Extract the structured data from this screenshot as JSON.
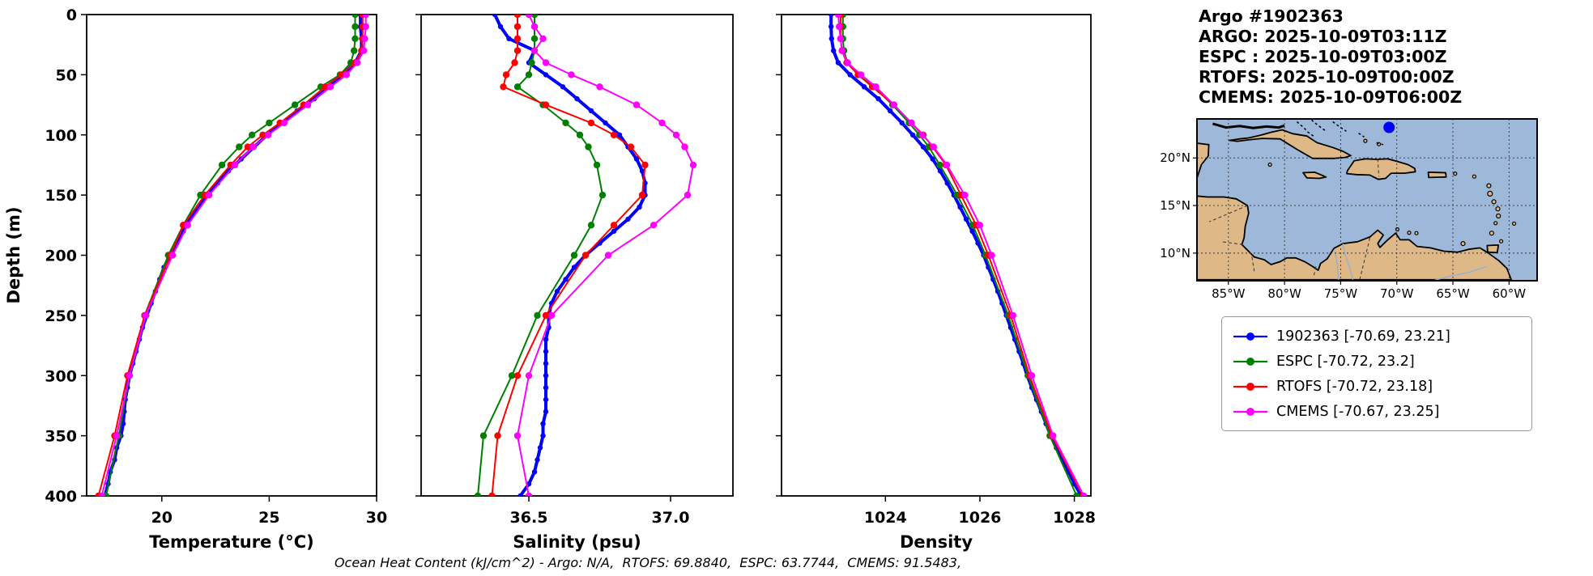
{
  "title_block": {
    "line1": "Argo #1902363",
    "line2": "ARGO: 2025-10-09T03:11Z",
    "line3": "ESPC : 2025-10-09T03:00Z",
    "line4": "RTOFS: 2025-10-09T00:00Z",
    "line5": "CMEMS: 2025-10-09T06:00Z"
  },
  "caption": "Ocean Heat Content (kJ/cm^2) - Argo: N/A,  RTOFS: 69.8840,  ESPC: 63.7744,  CMEMS: 91.5483,",
  "legend": {
    "items": [
      {
        "label": "1902363 [-70.69, 23.21]",
        "color": "#0000ff"
      },
      {
        "label": "ESPC [-70.72, 23.2]",
        "color": "#008000"
      },
      {
        "label": "RTOFS [-70.72, 23.18]",
        "color": "#ff0000"
      },
      {
        "label": "CMEMS [-70.67, 23.25]",
        "color": "#ff00ff"
      }
    ]
  },
  "map": {
    "lat_ticks": [
      "20°N",
      "15°N",
      "10°N"
    ],
    "lat_values": [
      20,
      15,
      10
    ],
    "lon_ticks": [
      "85°W",
      "80°W",
      "75°W",
      "70°W",
      "65°W",
      "60°W"
    ],
    "lon_values": [
      -85,
      -80,
      -75,
      -70,
      -65,
      -60
    ],
    "extent": {
      "lon_min": -87.8,
      "lon_max": -57.5,
      "lat_min": 7.1,
      "lat_max": 24.1
    },
    "float_marker": {
      "lon": -70.69,
      "lat": 23.21,
      "color": "#0000ff"
    },
    "land_color": "#deb887",
    "ocean_color": "#9db8d9"
  },
  "chart_data": [
    {
      "type": "line",
      "xlabel": "Temperature (°C)",
      "ylabel": "Depth (m)",
      "xlim": [
        16.5,
        30
      ],
      "ylim": [
        0,
        400
      ],
      "xticks": [
        20,
        25,
        30
      ],
      "xtick_labels": [
        "20",
        "25",
        "30"
      ],
      "yticks": [
        0,
        50,
        100,
        150,
        200,
        250,
        300,
        350,
        400
      ],
      "series": [
        {
          "name": "1902363",
          "color": "#0000ff",
          "linewidth": 4,
          "markersize": 3.2,
          "depths": [
            0,
            10,
            20,
            30,
            40,
            50,
            60,
            70,
            80,
            90,
            100,
            110,
            120,
            130,
            140,
            150,
            160,
            170,
            180,
            190,
            200,
            210,
            220,
            230,
            240,
            250,
            260,
            270,
            280,
            290,
            300,
            310,
            320,
            330,
            340,
            350,
            360,
            370,
            380,
            390,
            400
          ],
          "values": [
            29.25,
            29.25,
            29.3,
            29.3,
            29.0,
            28.4,
            27.8,
            27.1,
            26.3,
            25.6,
            24.9,
            24.3,
            23.7,
            23.1,
            22.6,
            22.1,
            21.7,
            21.3,
            21.0,
            20.7,
            20.4,
            20.1,
            19.9,
            19.7,
            19.5,
            19.3,
            19.1,
            18.95,
            18.8,
            18.65,
            18.5,
            18.4,
            18.3,
            18.25,
            18.2,
            18.1,
            17.9,
            17.8,
            17.6,
            17.5,
            17.35
          ]
        },
        {
          "name": "ESPC",
          "color": "#008000",
          "linewidth": 2,
          "markersize": 4.2,
          "depths": [
            0,
            10,
            20,
            30,
            40,
            50,
            60,
            75,
            90,
            100,
            110,
            125,
            150,
            175,
            200,
            250,
            300,
            350,
            400
          ],
          "values": [
            29.0,
            29.0,
            29.0,
            28.95,
            28.8,
            28.3,
            27.4,
            26.2,
            25.0,
            24.2,
            23.6,
            22.8,
            21.8,
            21.0,
            20.3,
            19.2,
            18.5,
            18.0,
            17.4
          ]
        },
        {
          "name": "RTOFS",
          "color": "#ff0000",
          "linewidth": 2,
          "markersize": 4.2,
          "depths": [
            0,
            10,
            20,
            30,
            40,
            50,
            60,
            75,
            90,
            100,
            110,
            125,
            150,
            175,
            200,
            250,
            300,
            350,
            400
          ],
          "values": [
            29.35,
            29.35,
            29.35,
            29.3,
            29.0,
            28.35,
            27.6,
            26.6,
            25.5,
            24.7,
            24.0,
            23.2,
            22.0,
            21.0,
            20.4,
            19.2,
            18.4,
            17.8,
            17.05
          ]
        },
        {
          "name": "CMEMS",
          "color": "#ff00ff",
          "linewidth": 2,
          "markersize": 4.2,
          "depths": [
            0,
            10,
            20,
            30,
            40,
            50,
            60,
            75,
            90,
            100,
            110,
            125,
            150,
            175,
            200,
            250,
            300,
            350,
            400
          ],
          "values": [
            29.5,
            29.5,
            29.45,
            29.4,
            29.1,
            28.6,
            27.85,
            26.8,
            25.7,
            24.95,
            24.25,
            23.4,
            22.2,
            21.2,
            20.5,
            19.25,
            18.5,
            17.9,
            17.2
          ]
        }
      ]
    },
    {
      "type": "line",
      "xlabel": "Salinity (psu)",
      "ylabel": "",
      "xlim": [
        36.12,
        37.22
      ],
      "ylim": [
        0,
        400
      ],
      "xticks": [
        36.5,
        37.0
      ],
      "xtick_labels": [
        "36.5",
        "37.0"
      ],
      "yticks": [
        0,
        50,
        100,
        150,
        200,
        250,
        300,
        350,
        400
      ],
      "series": [
        {
          "name": "1902363",
          "color": "#0000ff",
          "linewidth": 4,
          "markersize": 3.2,
          "depths": [
            0,
            10,
            20,
            30,
            40,
            50,
            60,
            70,
            80,
            90,
            100,
            110,
            120,
            130,
            140,
            150,
            160,
            170,
            180,
            190,
            200,
            210,
            220,
            230,
            240,
            250,
            260,
            270,
            280,
            290,
            300,
            310,
            320,
            330,
            340,
            350,
            360,
            370,
            380,
            390,
            400
          ],
          "values": [
            36.38,
            36.4,
            36.43,
            36.52,
            36.5,
            36.56,
            36.62,
            36.67,
            36.72,
            36.77,
            36.82,
            36.85,
            36.88,
            36.9,
            36.91,
            36.91,
            36.89,
            36.85,
            36.8,
            36.75,
            36.7,
            36.66,
            36.63,
            36.6,
            36.58,
            36.57,
            36.57,
            36.56,
            36.56,
            36.56,
            36.56,
            36.56,
            36.56,
            36.56,
            36.55,
            36.55,
            36.54,
            36.53,
            36.52,
            36.5,
            36.47
          ]
        },
        {
          "name": "ESPC",
          "color": "#008000",
          "linewidth": 2,
          "markersize": 4.2,
          "depths": [
            0,
            10,
            20,
            30,
            40,
            50,
            60,
            75,
            90,
            100,
            110,
            125,
            150,
            175,
            200,
            250,
            300,
            350,
            400
          ],
          "values": [
            36.52,
            36.52,
            36.52,
            36.52,
            36.51,
            36.5,
            36.46,
            36.55,
            36.63,
            36.68,
            36.71,
            36.74,
            36.76,
            36.72,
            36.66,
            36.53,
            36.44,
            36.34,
            36.32
          ]
        },
        {
          "name": "RTOFS",
          "color": "#ff0000",
          "linewidth": 2,
          "markersize": 4.2,
          "depths": [
            0,
            10,
            20,
            30,
            40,
            50,
            60,
            75,
            90,
            100,
            110,
            125,
            150,
            175,
            200,
            250,
            300,
            350,
            400
          ],
          "values": [
            36.46,
            36.46,
            36.46,
            36.46,
            36.45,
            36.42,
            36.41,
            36.56,
            36.72,
            36.8,
            36.86,
            36.91,
            36.9,
            36.8,
            36.7,
            36.56,
            36.46,
            36.39,
            36.37
          ]
        },
        {
          "name": "CMEMS",
          "color": "#ff00ff",
          "linewidth": 2,
          "markersize": 4.2,
          "depths": [
            0,
            10,
            20,
            30,
            40,
            50,
            60,
            75,
            90,
            100,
            110,
            125,
            150,
            175,
            200,
            250,
            300,
            350,
            400
          ],
          "values": [
            36.5,
            36.52,
            36.55,
            36.52,
            36.56,
            36.65,
            36.75,
            36.88,
            36.97,
            37.02,
            37.05,
            37.08,
            37.06,
            36.94,
            36.78,
            36.58,
            36.5,
            36.46,
            36.5
          ]
        }
      ]
    },
    {
      "type": "line",
      "xlabel": "Density",
      "ylabel": "",
      "xlim": [
        1021.8,
        1028.35
      ],
      "ylim": [
        0,
        400
      ],
      "xticks": [
        1024,
        1026,
        1028
      ],
      "xtick_labels": [
        "1024",
        "1026",
        "1028"
      ],
      "yticks": [
        0,
        50,
        100,
        150,
        200,
        250,
        300,
        350,
        400
      ],
      "series": [
        {
          "name": "1902363",
          "color": "#0000ff",
          "linewidth": 4,
          "markersize": 3.2,
          "depths": [
            0,
            10,
            20,
            30,
            40,
            50,
            60,
            70,
            80,
            90,
            100,
            110,
            120,
            130,
            140,
            150,
            160,
            170,
            180,
            190,
            200,
            210,
            220,
            230,
            240,
            250,
            260,
            270,
            280,
            290,
            300,
            310,
            320,
            330,
            340,
            350,
            360,
            370,
            380,
            390,
            400
          ],
          "values": [
            1022.85,
            1022.85,
            1022.86,
            1022.9,
            1023.0,
            1023.25,
            1023.55,
            1023.85,
            1024.1,
            1024.35,
            1024.58,
            1024.8,
            1025.0,
            1025.16,
            1025.31,
            1025.45,
            1025.58,
            1025.71,
            1025.84,
            1025.96,
            1026.08,
            1026.18,
            1026.28,
            1026.38,
            1026.47,
            1026.56,
            1026.65,
            1026.74,
            1026.83,
            1026.92,
            1027.0,
            1027.1,
            1027.2,
            1027.3,
            1027.4,
            1027.5,
            1027.62,
            1027.75,
            1027.88,
            1028.0,
            1028.15
          ]
        },
        {
          "name": "ESPC",
          "color": "#008000",
          "linewidth": 2,
          "markersize": 4.2,
          "depths": [
            0,
            10,
            20,
            30,
            40,
            50,
            60,
            75,
            90,
            100,
            110,
            125,
            150,
            175,
            200,
            250,
            300,
            350,
            400
          ],
          "values": [
            1023.1,
            1023.1,
            1023.1,
            1023.12,
            1023.2,
            1023.42,
            1023.75,
            1024.15,
            1024.5,
            1024.72,
            1024.92,
            1025.15,
            1025.52,
            1025.85,
            1026.12,
            1026.6,
            1027.02,
            1027.48,
            1028.05
          ]
        },
        {
          "name": "RTOFS",
          "color": "#ff0000",
          "linewidth": 2,
          "markersize": 4.2,
          "depths": [
            0,
            10,
            20,
            30,
            40,
            50,
            60,
            75,
            90,
            100,
            110,
            125,
            150,
            175,
            200,
            250,
            300,
            350,
            400
          ],
          "values": [
            1023.05,
            1023.05,
            1023.05,
            1023.08,
            1023.18,
            1023.42,
            1023.72,
            1024.18,
            1024.55,
            1024.8,
            1025.0,
            1025.28,
            1025.6,
            1025.92,
            1026.18,
            1026.65,
            1027.05,
            1027.52,
            1028.18
          ]
        },
        {
          "name": "CMEMS",
          "color": "#ff00ff",
          "linewidth": 2,
          "markersize": 4.2,
          "depths": [
            0,
            10,
            20,
            30,
            40,
            50,
            60,
            75,
            90,
            100,
            110,
            125,
            150,
            175,
            200,
            250,
            300,
            350,
            400
          ],
          "values": [
            1023.0,
            1023.02,
            1023.05,
            1023.08,
            1023.2,
            1023.48,
            1023.8,
            1024.18,
            1024.55,
            1024.78,
            1025.02,
            1025.3,
            1025.68,
            1026.0,
            1026.25,
            1026.7,
            1027.1,
            1027.55,
            1028.2
          ]
        }
      ]
    }
  ]
}
